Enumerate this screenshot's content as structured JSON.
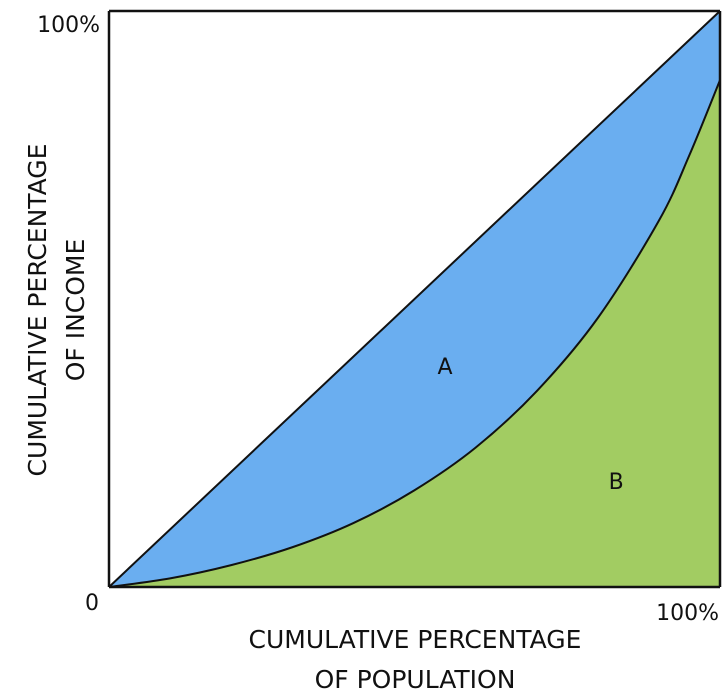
{
  "chart_data": {
    "type": "area",
    "title": "",
    "xlabel_lines": [
      "CUMULATIVE PERCENTAGE",
      "OF POPULATION"
    ],
    "ylabel_lines": [
      "CUMULATIVE PERCENTAGE",
      "OF INCOME"
    ],
    "origin_label": "0",
    "x_max_label": "100%",
    "y_max_label": "100%",
    "xlim": [
      0,
      100
    ],
    "ylim": [
      0,
      100
    ],
    "grid": false,
    "legend": "none",
    "series": [
      {
        "role": "line-of-equality",
        "x": [
          0,
          100
        ],
        "y": [
          0,
          100
        ]
      },
      {
        "role": "lorenz-curve",
        "x": [
          0,
          10,
          20,
          30,
          40,
          50,
          60,
          70,
          80,
          90,
          95,
          100
        ],
        "y": [
          0,
          1.5,
          3.8,
          6.9,
          11.1,
          16.8,
          24.2,
          34.0,
          46.7,
          63.6,
          75.0,
          88.0
        ]
      }
    ],
    "regions": [
      {
        "label": "A",
        "label_at": [
          55,
          37
        ],
        "color": "#6aaef0"
      },
      {
        "label": "B",
        "label_at": [
          83,
          17
        ],
        "color": "#a2cc62"
      }
    ],
    "colors": {
      "axis": "#111111",
      "area_a": "#6aaef0",
      "area_b": "#a2cc62"
    }
  }
}
